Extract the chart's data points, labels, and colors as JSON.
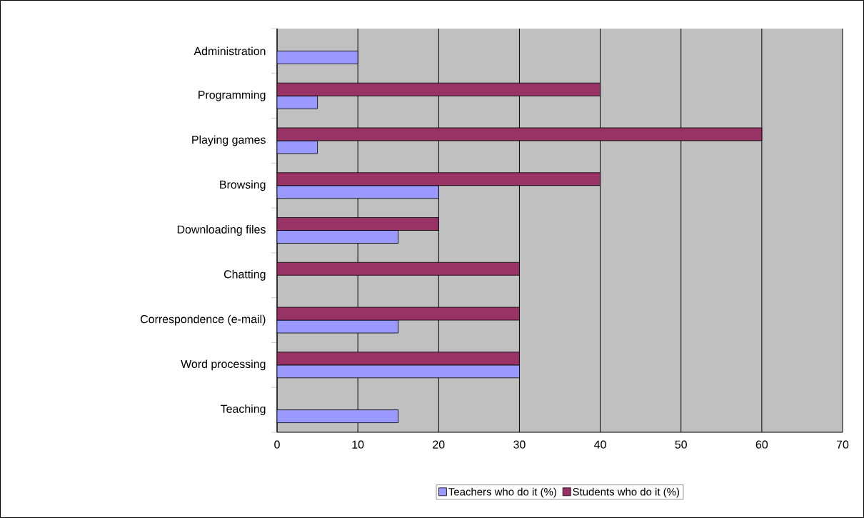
{
  "chart_data": {
    "type": "bar",
    "orientation": "horizontal",
    "categories": [
      "Administration",
      "Programming",
      "Playing games",
      "Browsing",
      "Downloading files",
      "Chatting",
      "Correspondence (e-mail)",
      "Word processing",
      "Teaching"
    ],
    "series": [
      {
        "name": "Teachers who do it (%)",
        "color": "#9999ff",
        "values": [
          10,
          5,
          5,
          20,
          15,
          null,
          15,
          30,
          15
        ]
      },
      {
        "name": "Students who do it (%)",
        "color": "#993366",
        "values": [
          null,
          40,
          60,
          40,
          20,
          30,
          30,
          30,
          null
        ]
      }
    ],
    "xlim": [
      0,
      70
    ],
    "xticks": [
      0,
      10,
      20,
      30,
      40,
      50,
      60,
      70
    ],
    "grid": "x",
    "legend": "bottom"
  }
}
